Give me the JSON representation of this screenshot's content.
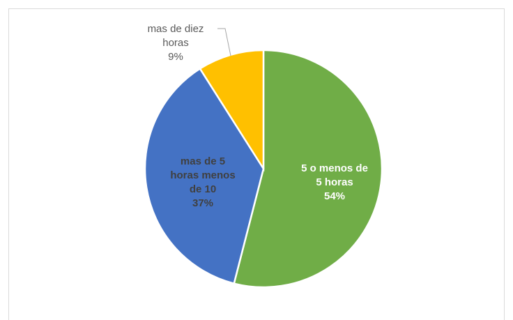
{
  "chart_data": {
    "type": "pie",
    "categories": [
      "5 o menos de 5 horas",
      "mas de 5 horas menos de 10",
      "mas de diez horas"
    ],
    "values": [
      54,
      37,
      9
    ],
    "value_labels": [
      "54%",
      "37%",
      "9%"
    ],
    "colors": [
      "#70ad47",
      "#4472c4",
      "#ffc000"
    ]
  }
}
